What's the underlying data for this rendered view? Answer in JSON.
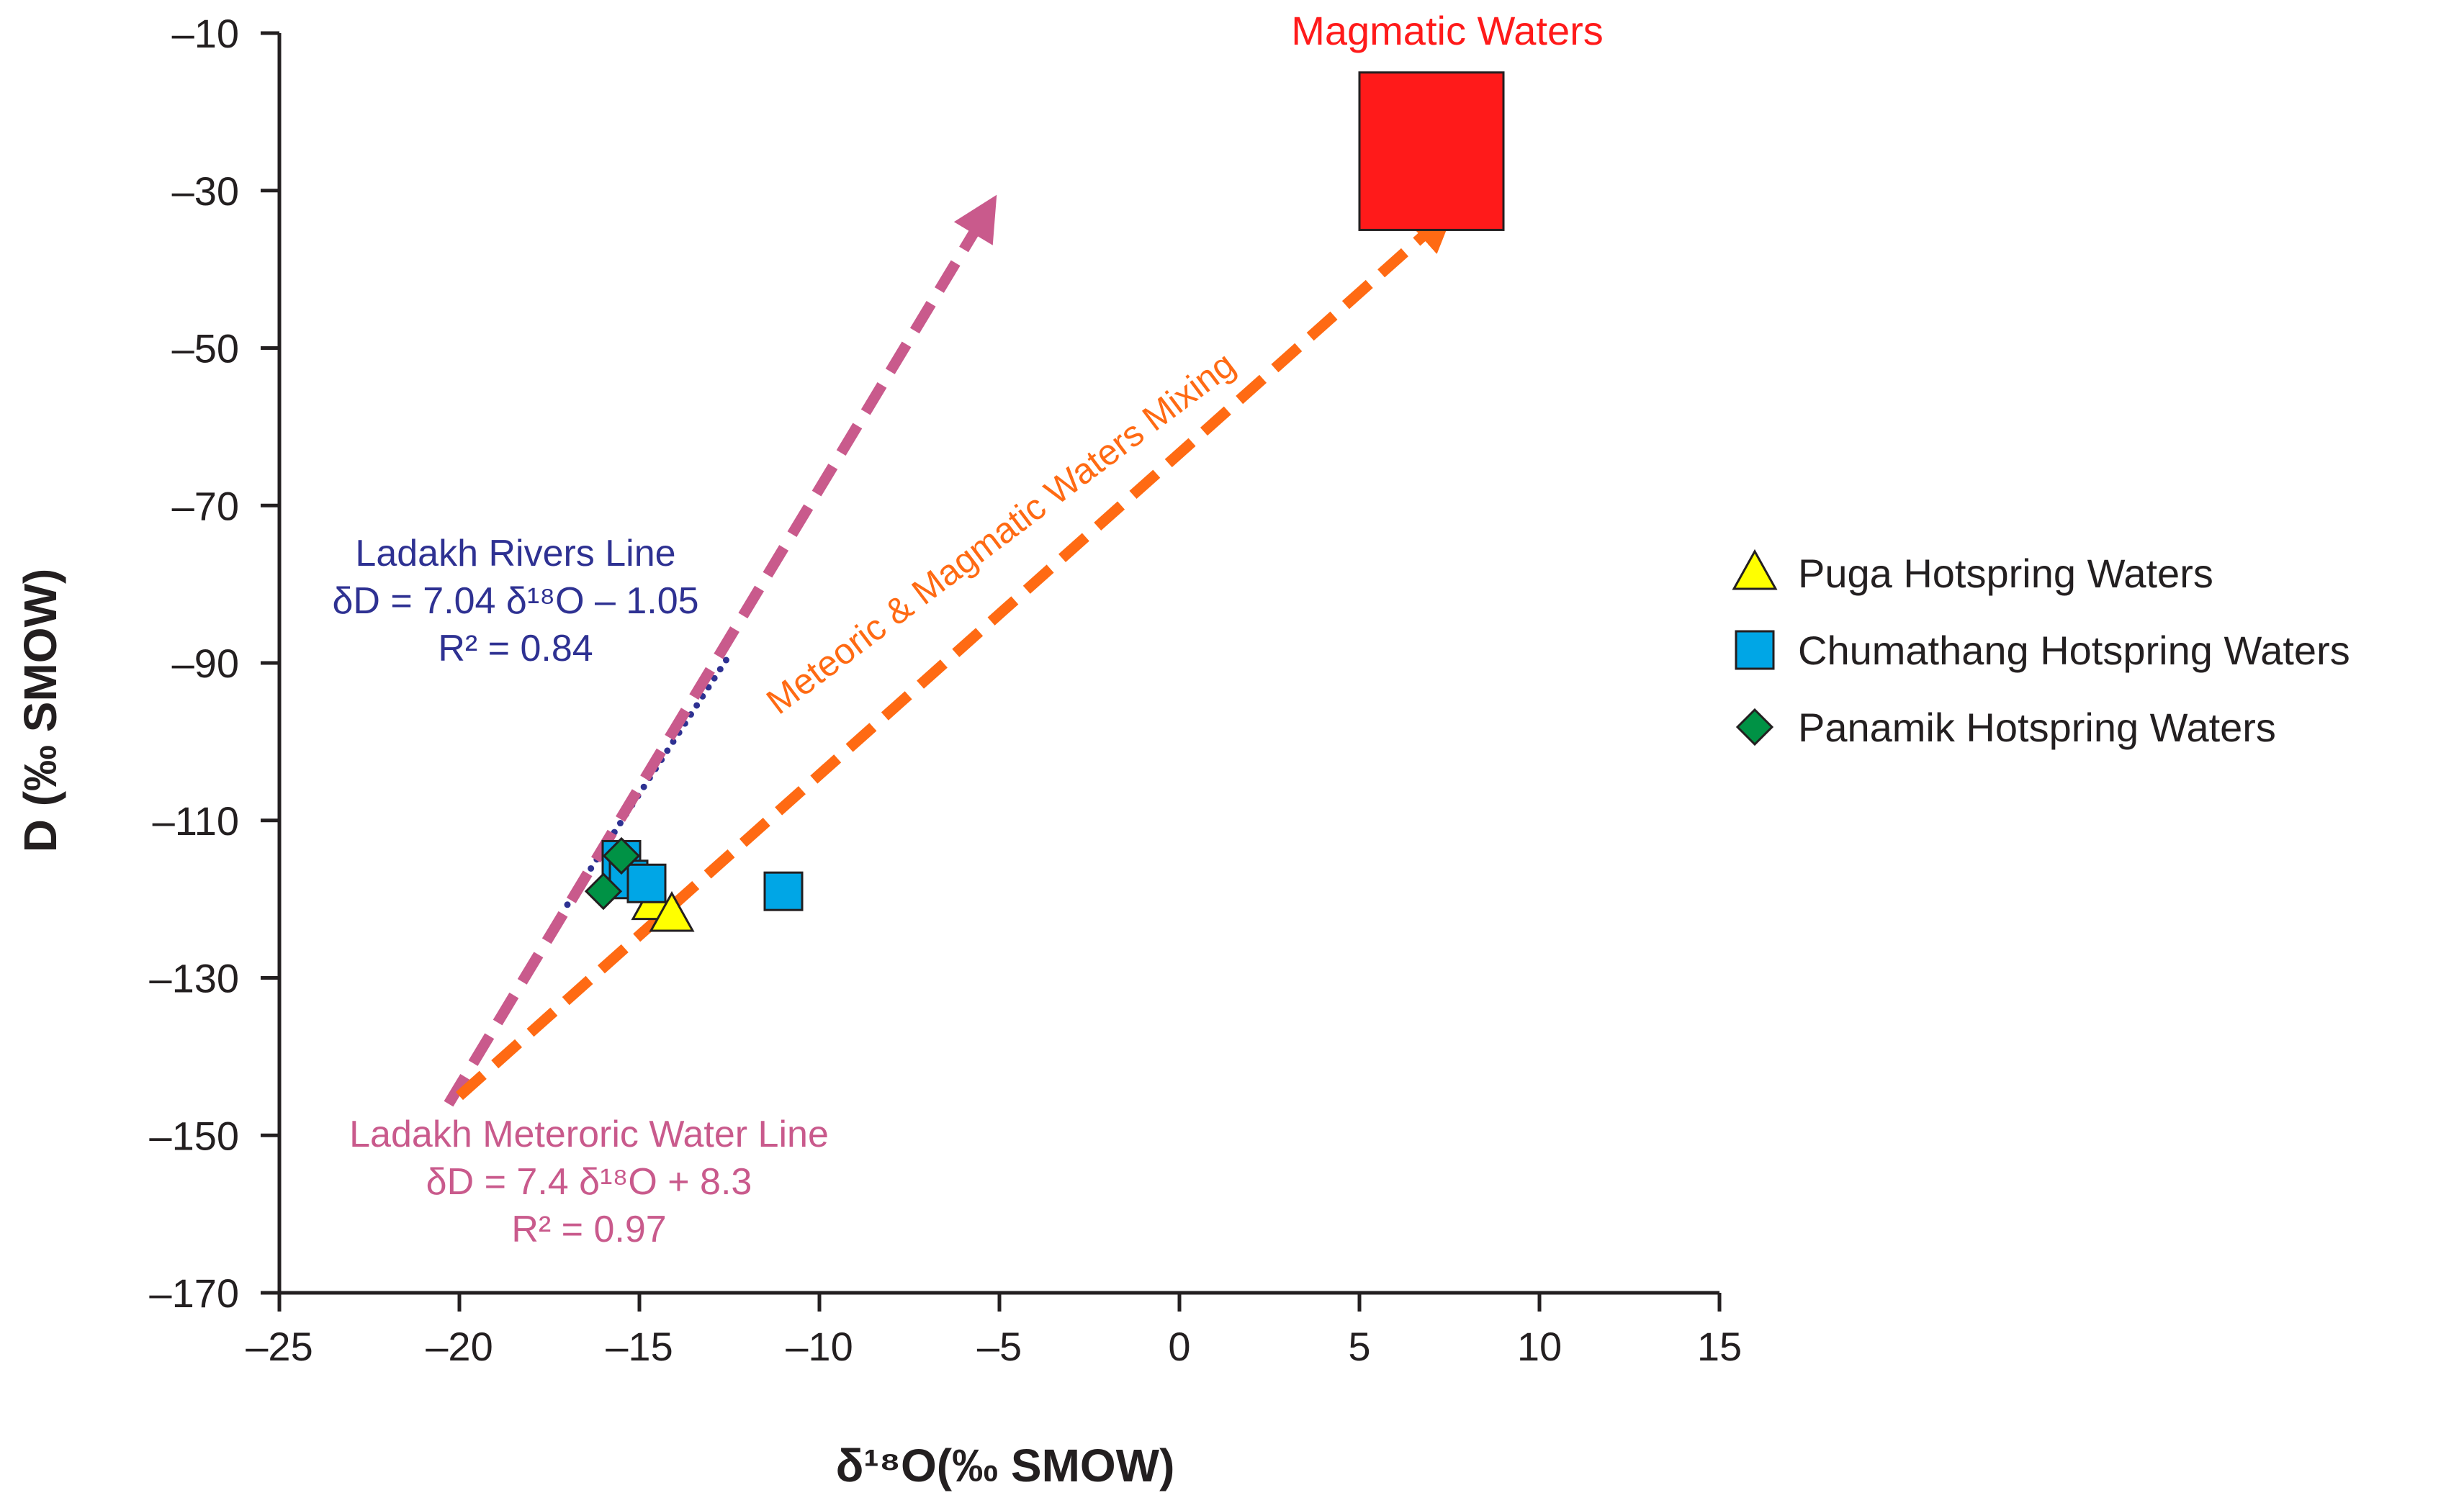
{
  "chart_data": {
    "type": "scatter",
    "xlabel": "δ¹⁸O(‰ SMOW)",
    "ylabel": "D (‰ SMOW)",
    "xlim": [
      -25,
      15
    ],
    "ylim": [
      -170,
      -10
    ],
    "x_ticks": [
      -25,
      -20,
      -15,
      -10,
      -5,
      0,
      5,
      10,
      15
    ],
    "x_tick_labels": [
      "–25",
      "–20",
      "–15",
      "–10",
      "–5",
      "0",
      "5",
      "10",
      "15"
    ],
    "y_ticks": [
      -10,
      -30,
      -50,
      -70,
      -90,
      -110,
      -130,
      -150,
      -170
    ],
    "y_tick_labels": [
      "–10",
      "–30",
      "–50",
      "–70",
      "–90",
      "–110",
      "–130",
      "–150",
      "–170"
    ],
    "grid": false,
    "legend_position": "right",
    "series": [
      {
        "name": "Puga Hotspring Waters",
        "marker": "triangle",
        "color": "#ffff00",
        "points": [
          {
            "x": -14.6,
            "y": -120.5
          },
          {
            "x": -14.1,
            "y": -122
          }
        ]
      },
      {
        "name": "Chumathang Hotspring Waters",
        "marker": "square",
        "color": "#00a6e6",
        "points": [
          {
            "x": -15.5,
            "y": -115
          },
          {
            "x": -15.3,
            "y": -117.5
          },
          {
            "x": -14.8,
            "y": -118
          },
          {
            "x": -11,
            "y": -119
          }
        ]
      },
      {
        "name": "Panamik Hotspring Waters",
        "marker": "diamond",
        "color": "#009245",
        "points": [
          {
            "x": -15.5,
            "y": -114.5
          },
          {
            "x": -16,
            "y": -119
          }
        ]
      }
    ],
    "magmatic_waters": {
      "label": "Magmatic Waters",
      "x_range": [
        5,
        9
      ],
      "y_range": [
        -35,
        -15
      ],
      "color": "#ff1a1a"
    },
    "lines": [
      {
        "name": "Ladakh Rivers Line",
        "equation": "δD = 7.04 δ¹⁸O – 1.05",
        "r2": "R² = 0.84",
        "color": "#2e3192",
        "style": "dotted",
        "from": {
          "x": -17,
          "y": -120.7
        },
        "to": {
          "x": -12.5,
          "y": -89
        }
      },
      {
        "name": "Ladakh Meteroric Water Line",
        "equation": "δD = 7.4 δ¹⁸O + 8.3",
        "r2": "R² = 0.97",
        "color": "#c95a8c",
        "style": "dashed-arrow",
        "from": {
          "x": -20.3,
          "y": -146
        },
        "to": {
          "x": -5.4,
          "y": -33
        }
      },
      {
        "name": "Meteoric & Magmatic Waters Mixing",
        "color": "#ff6a13",
        "style": "dashed-arrow",
        "from": {
          "x": -20,
          "y": -145
        },
        "to": {
          "x": 7.2,
          "y": -34
        }
      }
    ],
    "annotations": {
      "rivers_line_title": "Ladakh Rivers Line",
      "rivers_line_equation": "δD = 7.04 δ¹⁸O – 1.05",
      "rivers_line_r2": "R² = 0.84",
      "mwl_title": "Ladakh Meteroric Water Line",
      "mwl_equation": "δD = 7.4 δ¹⁸O + 8.3",
      "mwl_r2": "R² = 0.97",
      "mixing_label": "Meteoric & Magmatic Waters Mixing"
    }
  }
}
